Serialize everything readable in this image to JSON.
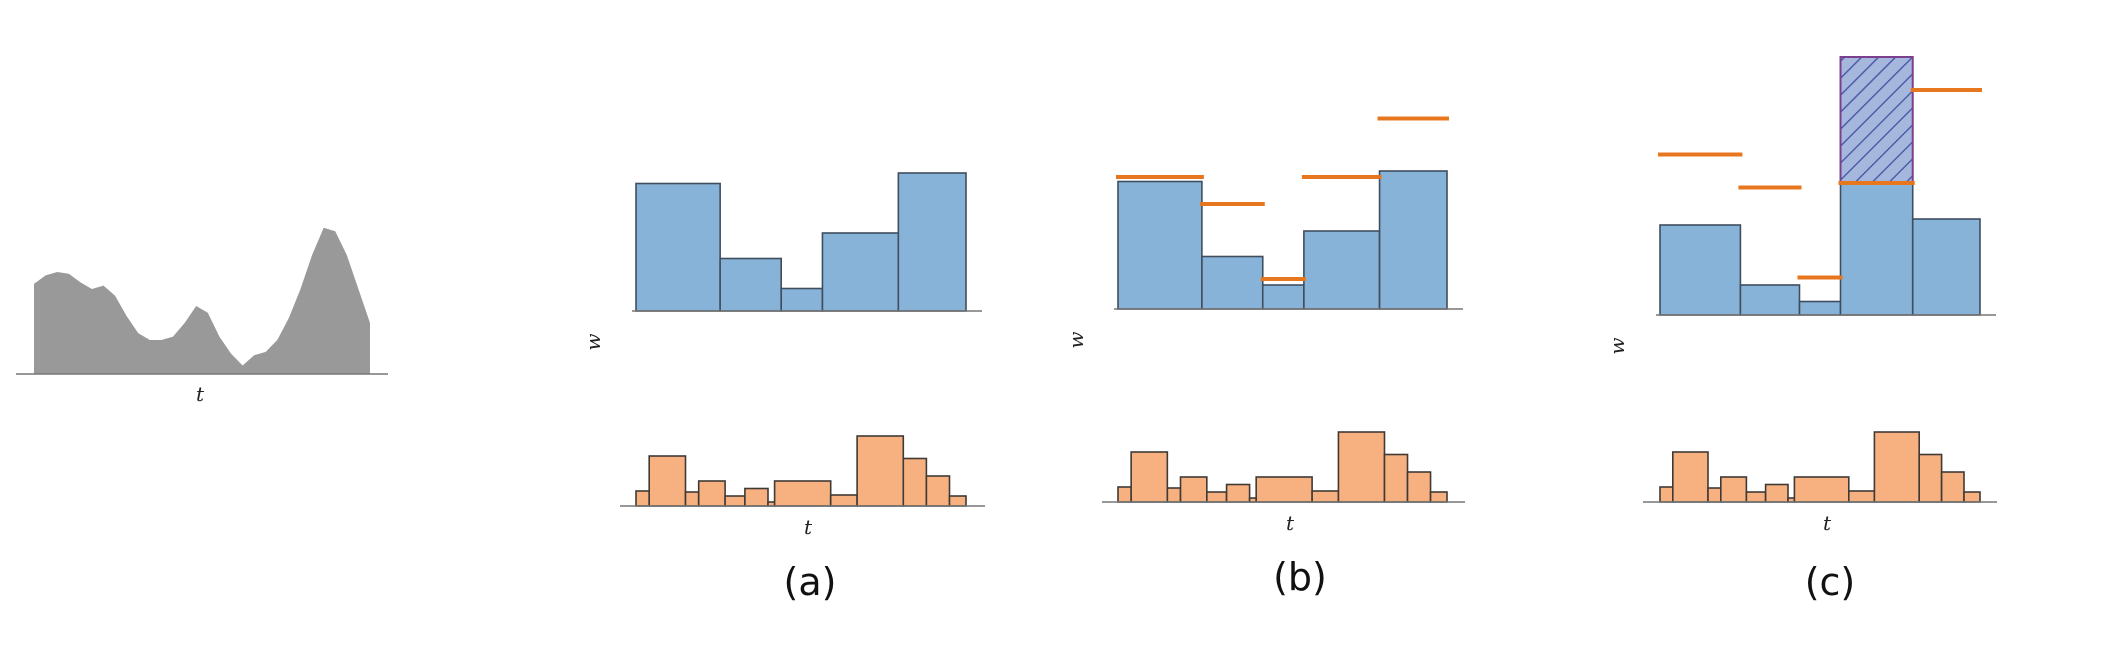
{
  "colors": {
    "signal": "#999999",
    "blue_fill": "#87b3d8",
    "blue_stroke": "#3f4e5e",
    "orange_fill": "#f7b07f",
    "orange_stroke": "#3f3a36",
    "orange_line": "#e7771f",
    "hatch_fill": "#a6b7de",
    "hatch_stroke": "#7b3f8e",
    "hatch_lines": "#4c5fa8",
    "axis": "#777777"
  },
  "input_signal": {
    "x_label": "t",
    "profile": [
      0.53,
      0.58,
      0.6,
      0.59,
      0.54,
      0.5,
      0.52,
      0.46,
      0.34,
      0.24,
      0.2,
      0.2,
      0.22,
      0.3,
      0.4,
      0.36,
      0.22,
      0.12,
      0.05,
      0.11,
      0.13,
      0.2,
      0.33,
      0.5,
      0.7,
      0.86,
      0.84,
      0.7,
      0.5,
      0.3
    ]
  },
  "panels": [
    {
      "label": "(a)",
      "w_label": "w",
      "t_label": "t",
      "top_bars": [
        0.85,
        0.35,
        0.15,
        0.52,
        0.92
      ],
      "top_widths": [
        0.255,
        0.185,
        0.125,
        0.23,
        0.205
      ],
      "target_lines": [],
      "hatched_bar": null,
      "bottom_bars": [
        0.3,
        1.0,
        0.28,
        0.5,
        0.2,
        0.35,
        0.08,
        0.5,
        0.22,
        1.4,
        0.95,
        0.6,
        0.2
      ],
      "bottom_widths": [
        0.04,
        0.11,
        0.04,
        0.08,
        0.06,
        0.07,
        0.02,
        0.17,
        0.08,
        0.14,
        0.07,
        0.07,
        0.05
      ]
    },
    {
      "label": "(b)",
      "w_label": "w",
      "t_label": "t",
      "top_bars": [
        0.85,
        0.35,
        0.16,
        0.52,
        0.92
      ],
      "top_widths": [
        0.255,
        0.185,
        0.125,
        0.23,
        0.205
      ],
      "target_lines": [
        {
          "bar": 0,
          "level": 0.88
        },
        {
          "bar": 1,
          "level": 0.7
        },
        {
          "bar": 2,
          "level": 0.2
        },
        {
          "bar": 3,
          "level": 0.88
        },
        {
          "bar": 4,
          "level": 1.27
        }
      ],
      "hatched_bar": null,
      "bottom_bars": [
        0.3,
        1.0,
        0.28,
        0.5,
        0.2,
        0.35,
        0.08,
        0.5,
        0.22,
        1.4,
        0.95,
        0.6,
        0.2
      ],
      "bottom_widths": [
        0.04,
        0.11,
        0.04,
        0.08,
        0.06,
        0.07,
        0.02,
        0.17,
        0.08,
        0.14,
        0.07,
        0.07,
        0.05
      ]
    },
    {
      "label": "(c)",
      "w_label": "w",
      "t_label": "t",
      "top_bars": [
        0.6,
        0.2,
        0.09,
        0.88,
        0.64
      ],
      "top_widths": [
        0.245,
        0.18,
        0.125,
        0.22,
        0.205
      ],
      "target_lines": [
        {
          "bar": 0,
          "level": 1.07
        },
        {
          "bar": 1,
          "level": 0.85
        },
        {
          "bar": 2,
          "level": 0.25
        },
        {
          "bar": 3,
          "level": 0.88
        },
        {
          "bar": 4,
          "level": 1.5
        }
      ],
      "hatched_bar": {
        "bar": 3,
        "from": 0.88,
        "to": 1.72
      },
      "bottom_bars": [
        0.3,
        1.0,
        0.28,
        0.5,
        0.2,
        0.35,
        0.08,
        0.5,
        0.22,
        1.4,
        0.95,
        0.6,
        0.2
      ],
      "bottom_widths": [
        0.04,
        0.11,
        0.04,
        0.08,
        0.06,
        0.07,
        0.02,
        0.17,
        0.08,
        0.14,
        0.07,
        0.07,
        0.05
      ]
    }
  ]
}
